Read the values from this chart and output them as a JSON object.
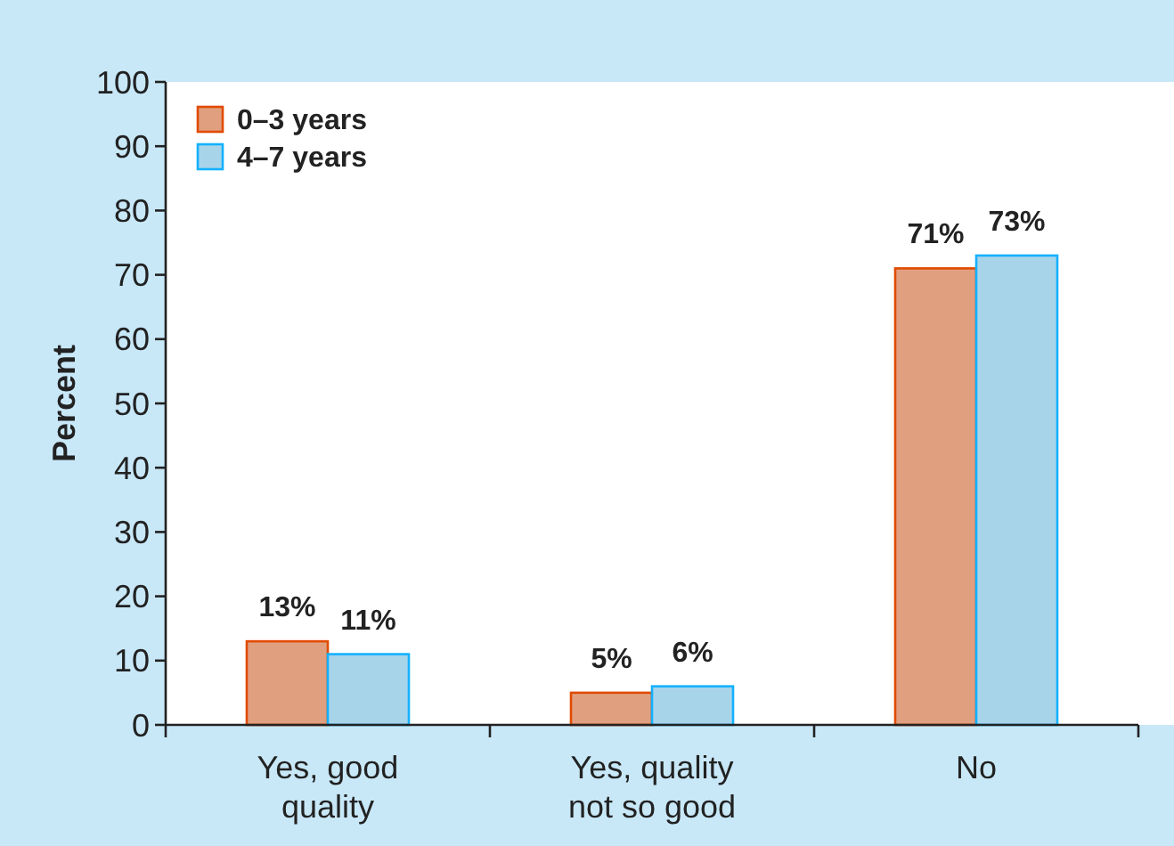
{
  "chart_data": {
    "type": "bar",
    "ylabel": "Percent",
    "categories": [
      "Yes, good quality",
      "Yes, quality not so good",
      "No"
    ],
    "series": [
      {
        "name": "0–3 years",
        "color": "#e0a080",
        "values": [
          13,
          5,
          71
        ],
        "value_labels": [
          "13%",
          "5%",
          "71%"
        ]
      },
      {
        "name": "4–7 years",
        "color": "#a8d4ea",
        "values": [
          11,
          6,
          73
        ],
        "value_labels": [
          "11%",
          "6%",
          "73%"
        ]
      }
    ],
    "ylim": [
      0,
      100
    ],
    "yticks": [
      0,
      10,
      20,
      30,
      40,
      50,
      60,
      70,
      80,
      90,
      100
    ],
    "legend": "top left",
    "grid": false
  }
}
